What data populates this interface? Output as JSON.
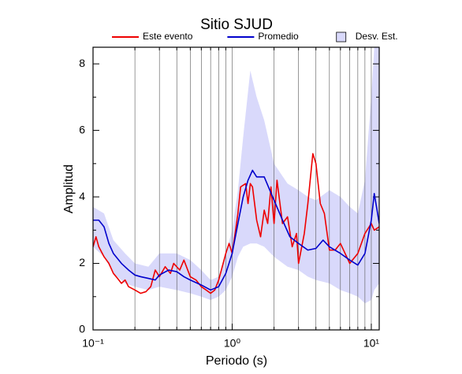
{
  "chart_data": {
    "type": "line",
    "title": "Sitio SJUD",
    "x_label": "Periodo (s)",
    "y_label": "Amplitud",
    "xscale": "log",
    "xlim": [
      0.1,
      11.4
    ],
    "ylim": [
      0,
      8.5
    ],
    "xticks": [
      {
        "value": 0.1,
        "label": "10⁻¹"
      },
      {
        "value": 1,
        "label": "10⁰"
      },
      {
        "value": 10,
        "label": "10¹"
      }
    ],
    "yticks": [
      0,
      2,
      4,
      6,
      8
    ],
    "grid": true,
    "legend": "top",
    "band": {
      "name": "Desv. Est.",
      "color": "#d9d9fb",
      "x": [
        0.1,
        0.12,
        0.14,
        0.17,
        0.2,
        0.25,
        0.3,
        0.4,
        0.5,
        0.6,
        0.7,
        0.8,
        0.9,
        1.0,
        1.1,
        1.2,
        1.35,
        1.5,
        1.7,
        2.0,
        2.5,
        3.0,
        3.5,
        4.0,
        5.0,
        6.0,
        7.0,
        8.0,
        9.0,
        10.0,
        10.5,
        11.4
      ],
      "upper": [
        3.7,
        3.5,
        2.7,
        2.3,
        2.0,
        1.9,
        2.3,
        2.3,
        2.1,
        1.8,
        1.5,
        1.6,
        2.3,
        3.0,
        4.2,
        5.8,
        7.8,
        7.0,
        6.3,
        5.0,
        4.4,
        4.2,
        4.0,
        3.9,
        4.2,
        4.0,
        3.7,
        3.5,
        4.5,
        7.0,
        8.5,
        8.5
      ],
      "lower": [
        2.5,
        2.2,
        1.7,
        1.4,
        1.3,
        1.2,
        1.3,
        1.2,
        1.1,
        1.0,
        0.9,
        1.0,
        1.2,
        1.6,
        2.2,
        2.5,
        2.6,
        2.6,
        2.5,
        2.2,
        1.9,
        1.8,
        1.6,
        1.5,
        1.4,
        1.2,
        1.1,
        1.0,
        0.8,
        0.9,
        1.2,
        1.4
      ]
    },
    "series": [
      {
        "name": "Este evento",
        "color": "#ee0000",
        "x": [
          0.1,
          0.105,
          0.11,
          0.12,
          0.13,
          0.14,
          0.15,
          0.16,
          0.17,
          0.18,
          0.2,
          0.22,
          0.24,
          0.26,
          0.28,
          0.3,
          0.33,
          0.36,
          0.38,
          0.42,
          0.45,
          0.5,
          0.55,
          0.6,
          0.65,
          0.7,
          0.75,
          0.8,
          0.9,
          0.95,
          1.0,
          1.05,
          1.1,
          1.15,
          1.25,
          1.3,
          1.35,
          1.4,
          1.5,
          1.6,
          1.7,
          1.8,
          1.9,
          2.0,
          2.1,
          2.3,
          2.5,
          2.7,
          2.9,
          3.0,
          3.3,
          3.5,
          3.8,
          4.0,
          4.3,
          4.6,
          5.0,
          5.5,
          6.0,
          7.0,
          8.0,
          9.0,
          10.0,
          10.5,
          11.4
        ],
        "values": [
          2.5,
          2.8,
          2.5,
          2.2,
          2.0,
          1.7,
          1.55,
          1.4,
          1.5,
          1.3,
          1.2,
          1.1,
          1.15,
          1.3,
          1.8,
          1.6,
          1.9,
          1.7,
          2.0,
          1.8,
          2.1,
          1.6,
          1.5,
          1.3,
          1.2,
          1.1,
          1.2,
          1.5,
          2.3,
          2.6,
          2.3,
          2.9,
          3.5,
          4.3,
          4.4,
          3.8,
          4.4,
          4.3,
          3.3,
          2.8,
          3.6,
          3.2,
          4.3,
          3.2,
          4.5,
          3.2,
          3.4,
          2.5,
          2.9,
          2.0,
          2.9,
          3.8,
          5.3,
          5.0,
          3.8,
          3.5,
          2.4,
          2.4,
          2.6,
          2.0,
          2.3,
          2.9,
          3.2,
          3.0,
          3.1
        ]
      },
      {
        "name": "Promedio",
        "color": "#0000cc",
        "x": [
          0.1,
          0.11,
          0.12,
          0.13,
          0.14,
          0.16,
          0.18,
          0.2,
          0.22,
          0.25,
          0.28,
          0.3,
          0.35,
          0.4,
          0.45,
          0.5,
          0.6,
          0.7,
          0.8,
          0.9,
          1.0,
          1.1,
          1.2,
          1.3,
          1.4,
          1.5,
          1.7,
          2.0,
          2.3,
          2.6,
          3.0,
          3.5,
          4.0,
          4.5,
          5.0,
          6.0,
          7.0,
          8.0,
          9.0,
          10.0,
          10.5,
          11.0,
          11.4
        ],
        "values": [
          3.3,
          3.3,
          3.1,
          2.6,
          2.3,
          2.0,
          1.8,
          1.65,
          1.6,
          1.55,
          1.5,
          1.65,
          1.8,
          1.75,
          1.6,
          1.5,
          1.35,
          1.2,
          1.3,
          1.7,
          2.3,
          3.2,
          4.0,
          4.5,
          4.8,
          4.6,
          4.6,
          3.9,
          3.3,
          2.8,
          2.6,
          2.4,
          2.45,
          2.7,
          2.5,
          2.3,
          2.1,
          1.95,
          2.3,
          3.3,
          4.1,
          3.6,
          3.2
        ]
      }
    ]
  }
}
